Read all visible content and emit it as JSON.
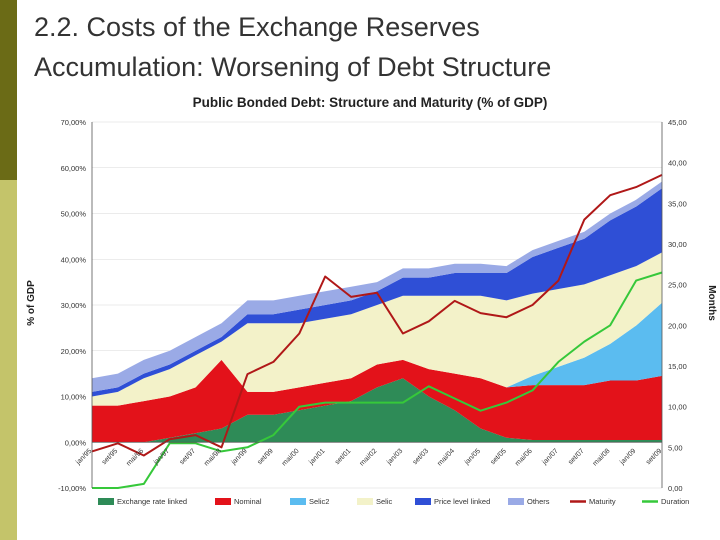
{
  "slide": {
    "title_line1": "2.2. Costs of the Exchange Reserves",
    "title_line2": "Accumulation: Worsening of Debt Structure"
  },
  "colors": {
    "exchange_rate_linked": "#2e8b57",
    "nominal": "#e3121a",
    "selic2": "#5bbcf0",
    "selic": "#f3f2c9",
    "price_level_linked": "#2f4fd6",
    "others": "#9aaae6",
    "maturity": "#b01818",
    "duration": "#36c83a"
  },
  "chart_data": {
    "type": "area",
    "title": "Public Bonded Debt: Structure and Maturity (% of GDP)",
    "ylabel": "% of GDP",
    "y2label": "Months",
    "ylim": [
      -10,
      70
    ],
    "y2lim": [
      0,
      45
    ],
    "yticks": [
      "-10,00%",
      "0,00%",
      "10,00%",
      "20,00%",
      "30,00%",
      "40,00%",
      "50,00%",
      "60,00%",
      "70,00%"
    ],
    "y2ticks": [
      "0,00",
      "5,00",
      "10,00",
      "15,00",
      "20,00",
      "25,00",
      "30,00",
      "35,00",
      "40,00",
      "45,00"
    ],
    "categories": [
      "jan/95",
      "set/95",
      "mai/96",
      "jan/97",
      "set/97",
      "mai/98",
      "jan/99",
      "set/99",
      "mai/00",
      "jan/01",
      "set/01",
      "mai/02",
      "jan/03",
      "set/03",
      "mai/04",
      "jan/05",
      "set/05",
      "mai/06",
      "jan/07",
      "set/07",
      "mai/08",
      "jan/09",
      "set/09"
    ],
    "series": [
      {
        "name": "Exchange rate linked",
        "kind": "area",
        "values": [
          0,
          0,
          0,
          1,
          2,
          3,
          6,
          6,
          7,
          8,
          9,
          12,
          14,
          10,
          7,
          3,
          1,
          0.5,
          0.5,
          0.5,
          0.5,
          0.5,
          0.5
        ]
      },
      {
        "name": "Nominal",
        "kind": "area",
        "values": [
          8,
          8,
          9,
          9,
          10,
          15,
          5,
          5,
          5,
          5,
          5,
          5,
          4,
          6,
          8,
          11,
          11,
          12,
          12,
          12,
          13,
          13,
          14
        ]
      },
      {
        "name": "Selic2",
        "kind": "area",
        "values": [
          0,
          0,
          0,
          0,
          0,
          0,
          0,
          0,
          0,
          0,
          0,
          0,
          0,
          0,
          0,
          0,
          0,
          2,
          4,
          6,
          8,
          12,
          16
        ]
      },
      {
        "name": "Selic",
        "kind": "area",
        "values": [
          2,
          3,
          5,
          6,
          7,
          4,
          15,
          15,
          14,
          14,
          14,
          13,
          14,
          16,
          17,
          18,
          19,
          18,
          17,
          16,
          15,
          13,
          11
        ]
      },
      {
        "name": "Price level linked",
        "kind": "area",
        "values": [
          1,
          1,
          1,
          1,
          1,
          1,
          2,
          2,
          3,
          3,
          3,
          3,
          4,
          4,
          5,
          5,
          6,
          8,
          9,
          10,
          12,
          13,
          14
        ]
      },
      {
        "name": "Others",
        "kind": "area",
        "values": [
          3,
          3,
          3,
          3,
          3,
          3,
          3,
          3,
          3,
          3,
          3,
          2,
          2,
          2,
          2,
          2,
          1.5,
          1.5,
          1.5,
          1.5,
          1.5,
          1.5,
          1.5
        ]
      },
      {
        "name": "Maturity",
        "kind": "line",
        "axis": "right",
        "values": [
          4.5,
          5.5,
          4.0,
          6.0,
          6.5,
          5.0,
          14.0,
          15.5,
          19.0,
          26.0,
          23.5,
          24.0,
          19.0,
          20.5,
          23.0,
          21.5,
          21.0,
          22.5,
          25.5,
          33.0,
          36.0,
          37.0,
          38.5
        ]
      },
      {
        "name": "Duration",
        "kind": "line",
        "axis": "right",
        "values": [
          0,
          0,
          0.5,
          5.5,
          5.5,
          4.5,
          5.0,
          6.5,
          10.0,
          10.5,
          10.5,
          10.5,
          10.5,
          12.5,
          11.0,
          9.5,
          10.5,
          12.0,
          15.5,
          18.0,
          20.0,
          25.5,
          26.5
        ]
      }
    ],
    "legend": [
      "Exchange rate linked",
      "Nominal",
      "Selic2",
      "Selic",
      "Price level linked",
      "Others",
      "Maturity",
      "Duration"
    ],
    "legend_position": "bottom"
  }
}
